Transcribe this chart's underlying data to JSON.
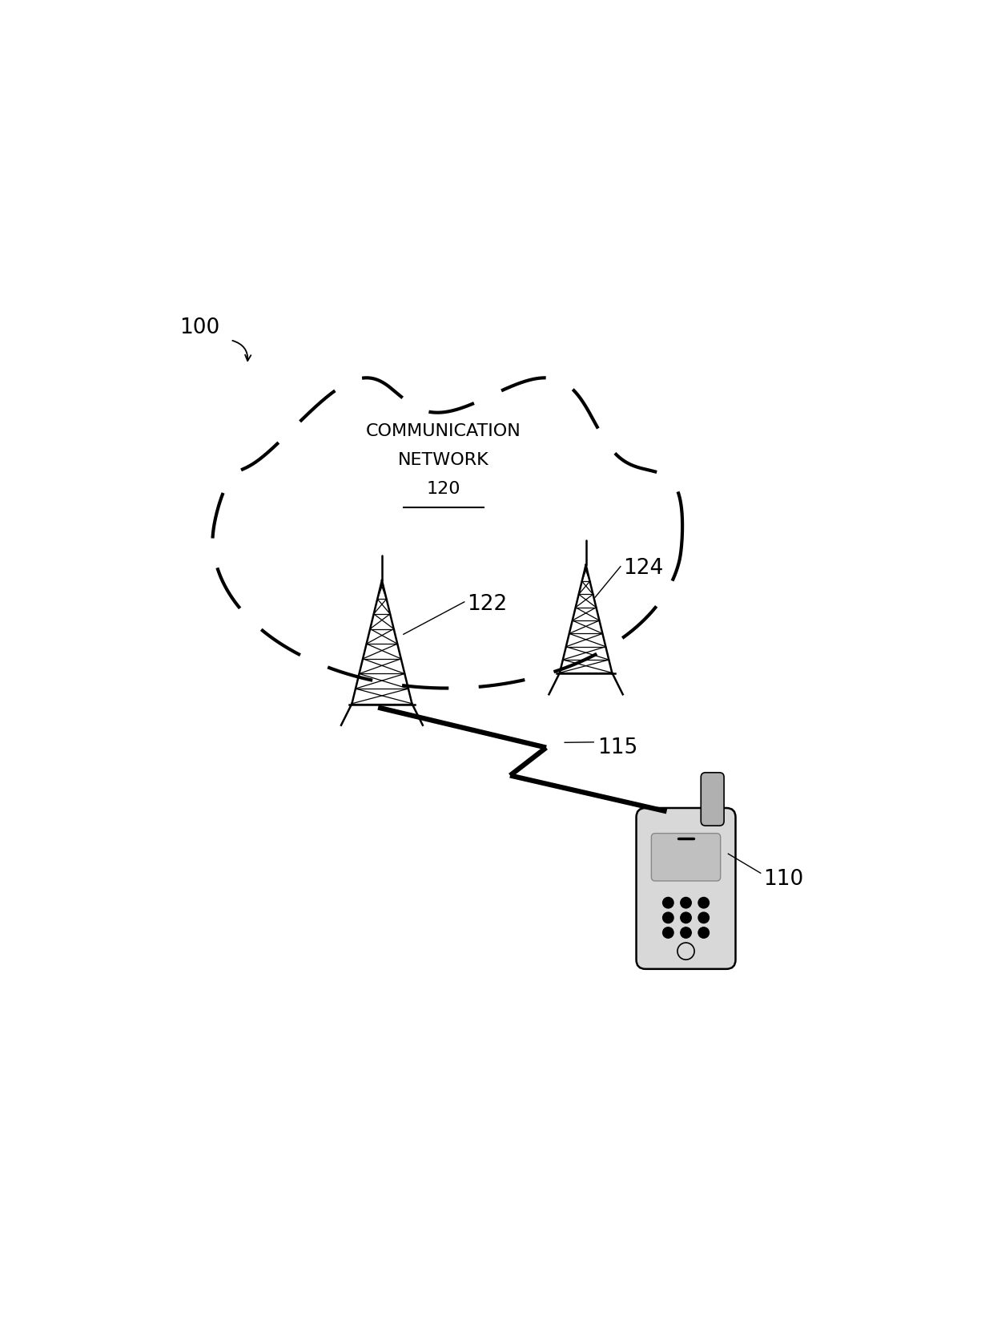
{
  "bg_color": "#ffffff",
  "label_100": "100",
  "label_120": "120",
  "label_122": "122",
  "label_124": "124",
  "label_110": "110",
  "label_115": "115",
  "network_label_line1": "COMMUNICATION",
  "network_label_line2": "NETWORK",
  "text_color": "#000000"
}
